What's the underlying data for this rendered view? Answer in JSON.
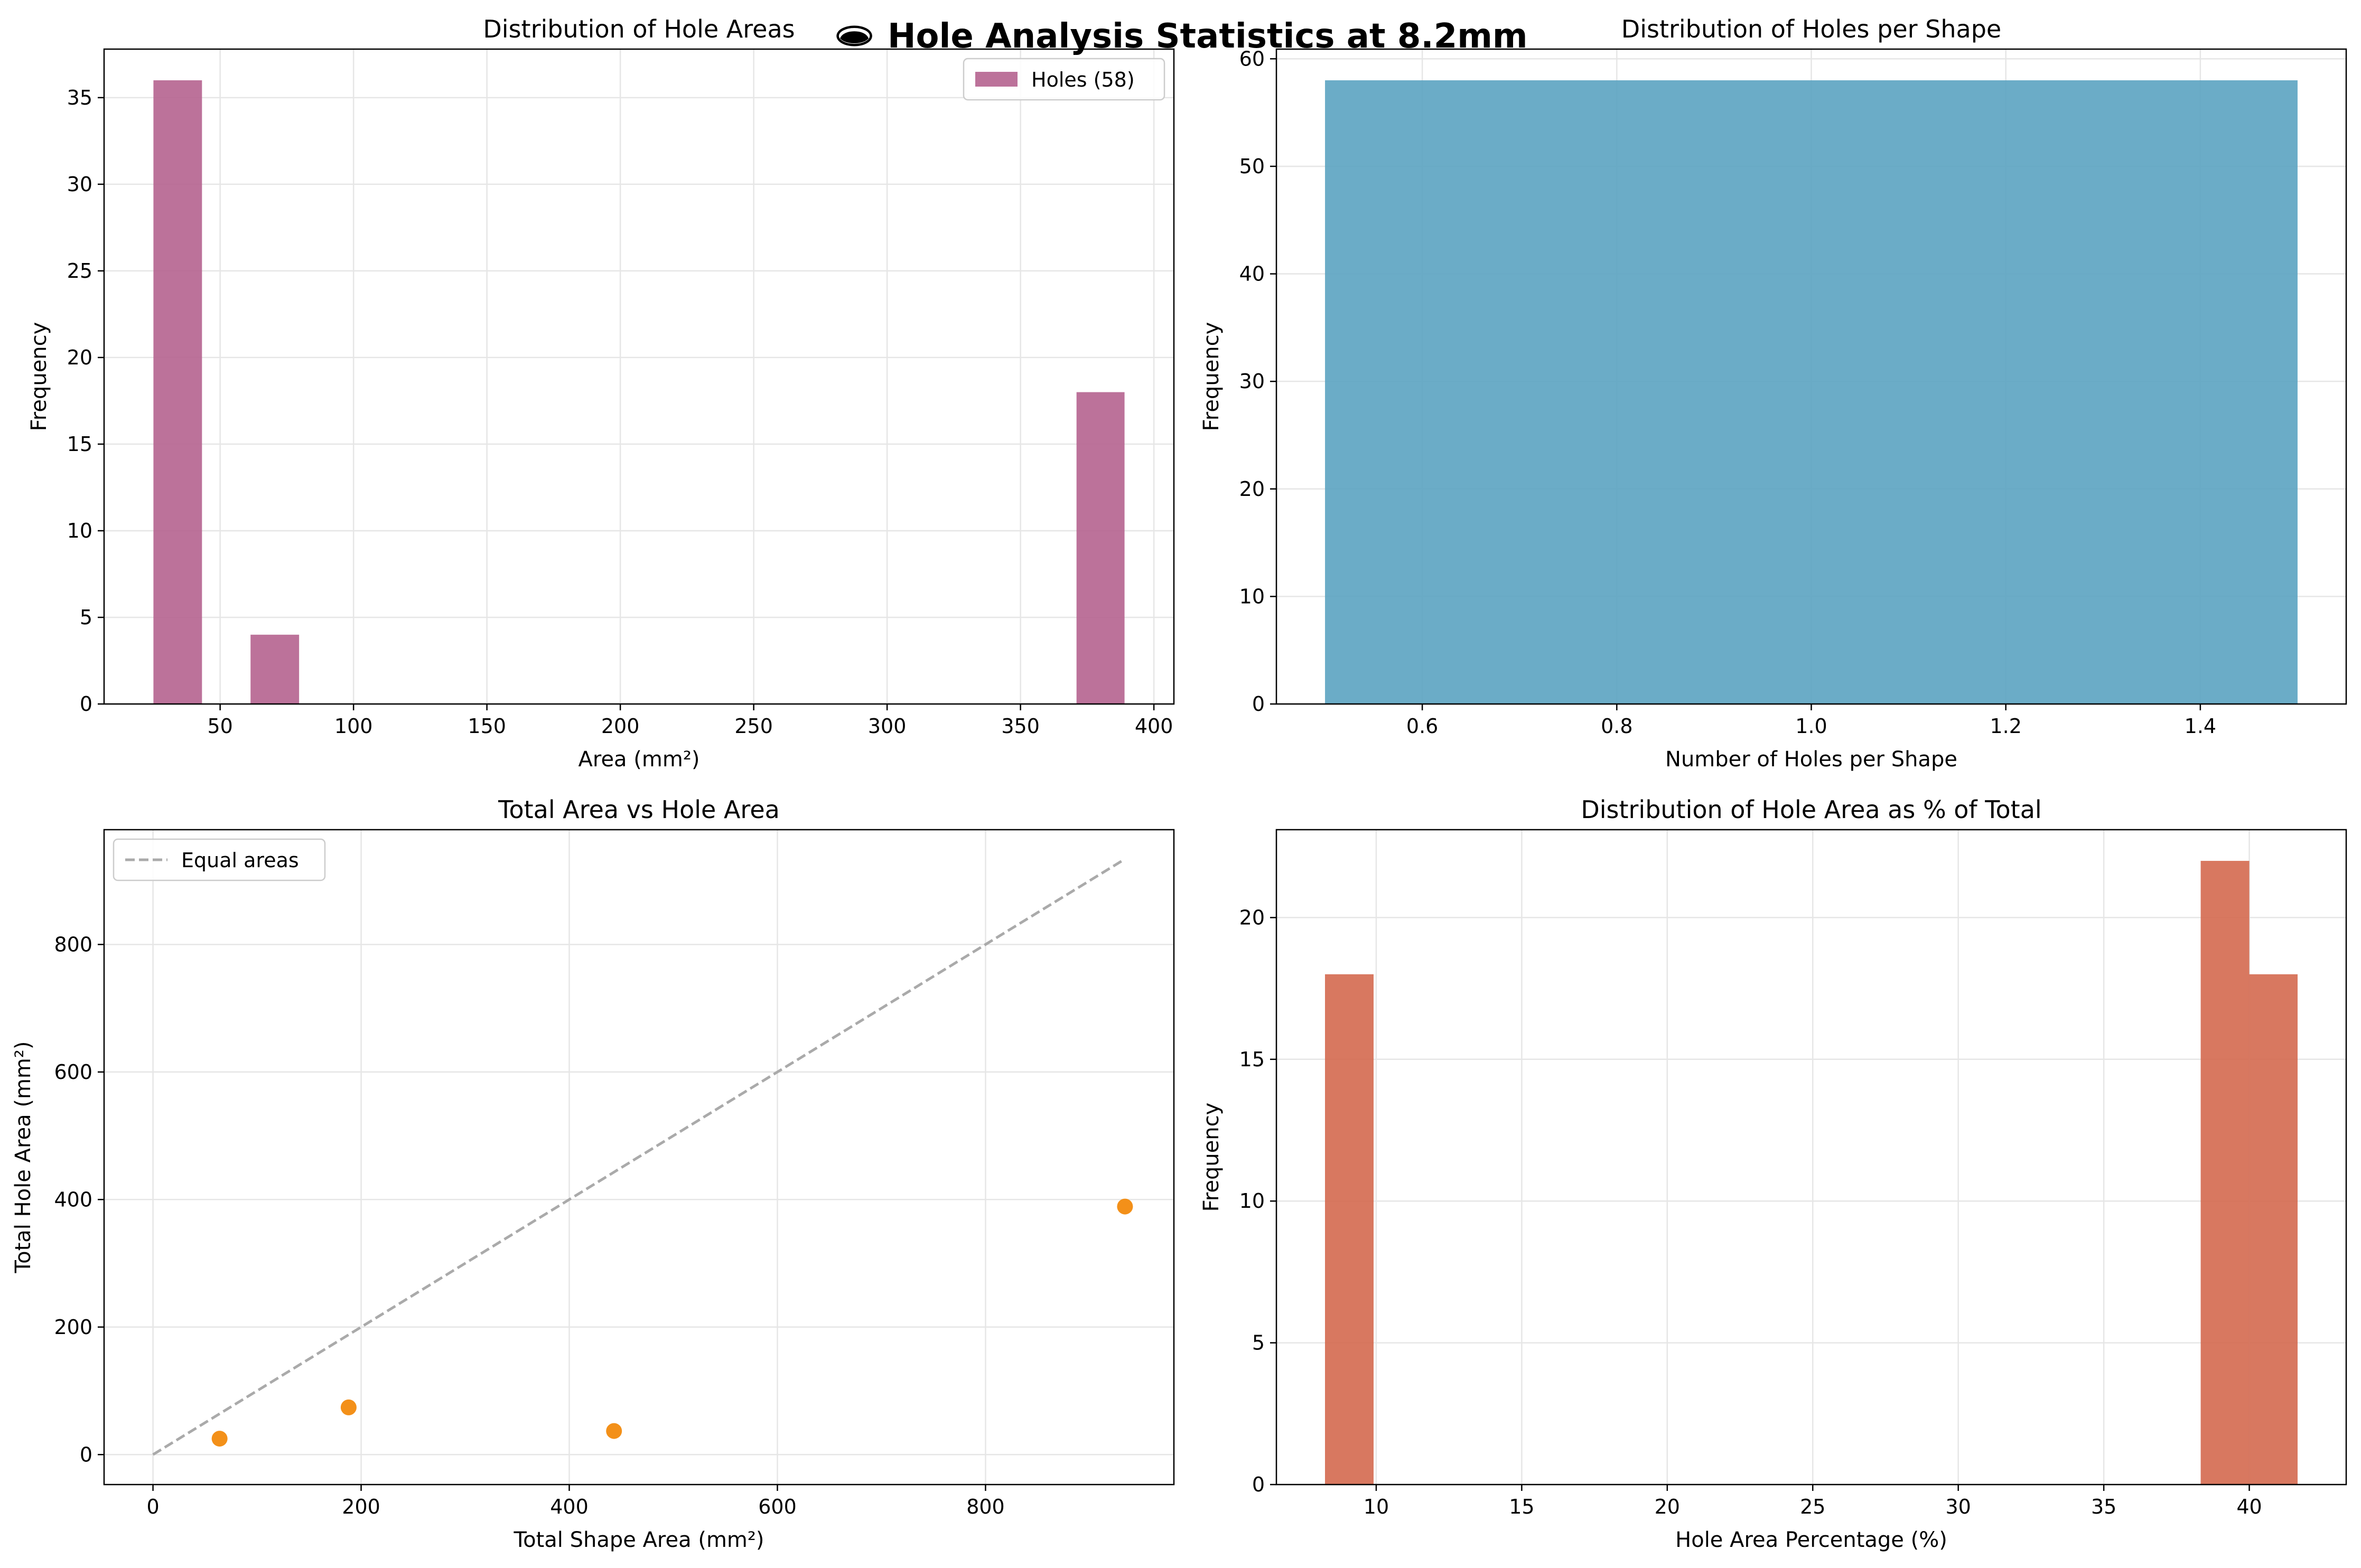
{
  "figure": {
    "suptitle": "🕳 Hole Analysis Statistics at 8.2mm",
    "background": "#ffffff"
  },
  "chart_data": [
    {
      "type": "bar",
      "title": "Distribution of Hole Areas",
      "xlabel": "Area (mm²)",
      "ylabel": "Frequency",
      "xlim": [
        6.5,
        407.5
      ],
      "ylim": [
        0,
        37.8
      ],
      "xticks": [
        50,
        100,
        150,
        200,
        250,
        300,
        350,
        400
      ],
      "yticks": [
        0,
        5,
        10,
        15,
        20,
        25,
        30,
        35
      ],
      "grid": true,
      "legend": {
        "placement": "top-right",
        "entries": [
          {
            "label": "Holes (58)",
            "color": "#b5638f"
          }
        ]
      },
      "color": "#b5638f",
      "bins": [
        {
          "x0": 25,
          "x1": 43.2,
          "value": 36
        },
        {
          "x0": 61.4,
          "x1": 79.6,
          "value": 4
        },
        {
          "x0": 371,
          "x1": 389,
          "value": 18
        }
      ]
    },
    {
      "type": "bar",
      "title": "Distribution of Holes per Shape",
      "xlabel": "Number of Holes per Shape",
      "ylabel": "Frequency",
      "xlim": [
        0.45,
        1.55
      ],
      "ylim": [
        0,
        60.9
      ],
      "xticks": [
        0.6,
        0.8,
        1.0,
        1.2,
        1.4
      ],
      "ytickLabels": [
        "0",
        "10",
        "20",
        "30",
        "40",
        "50",
        "60"
      ],
      "xtickLabels": [
        "0.6",
        "0.8",
        "1.0",
        "1.2",
        "1.4"
      ],
      "yticks": [
        0,
        10,
        20,
        30,
        40,
        50,
        60
      ],
      "grid": true,
      "color": "#5ba3c1",
      "bins": [
        {
          "x0": 0.5,
          "x1": 1.5,
          "value": 58
        }
      ]
    },
    {
      "type": "scatter",
      "title": "Total Area vs Hole Area",
      "xlabel": "Total Shape Area (mm²)",
      "ylabel": "Total Hole Area (mm²)",
      "xlim": [
        -47,
        981
      ],
      "ylim": [
        -47,
        980
      ],
      "xticks": [
        0,
        200,
        400,
        600,
        800
      ],
      "yticks": [
        0,
        200,
        400,
        600,
        800
      ],
      "grid": true,
      "legend": {
        "placement": "top-left",
        "entries": [
          {
            "label": "Equal areas",
            "color": "#aaaaaa",
            "style": "dashed"
          }
        ]
      },
      "points": [
        {
          "x": 64,
          "y": 25
        },
        {
          "x": 188,
          "y": 74
        },
        {
          "x": 443,
          "y": 37
        },
        {
          "x": 934,
          "y": 389
        }
      ],
      "point_color": "#f28a0d",
      "reference_line": {
        "x": [
          0,
          934
        ],
        "y": [
          0,
          934
        ],
        "color": "#aaaaaa"
      }
    },
    {
      "type": "bar",
      "title": "Distribution of Hole Area as % of Total",
      "xlabel": "Hole Area Percentage (%)",
      "ylabel": "Frequency",
      "xlim": [
        6.57,
        43.33
      ],
      "ylim": [
        0,
        23.1
      ],
      "xticks": [
        10,
        15,
        20,
        25,
        30,
        35,
        40
      ],
      "yticks": [
        0,
        5,
        10,
        15,
        20
      ],
      "grid": true,
      "color": "#d4694f",
      "bins": [
        {
          "x0": 8.24,
          "x1": 9.91,
          "value": 18
        },
        {
          "x0": 38.33,
          "x1": 40.0,
          "value": 22
        },
        {
          "x0": 40.0,
          "x1": 41.66,
          "value": 18
        }
      ]
    }
  ]
}
